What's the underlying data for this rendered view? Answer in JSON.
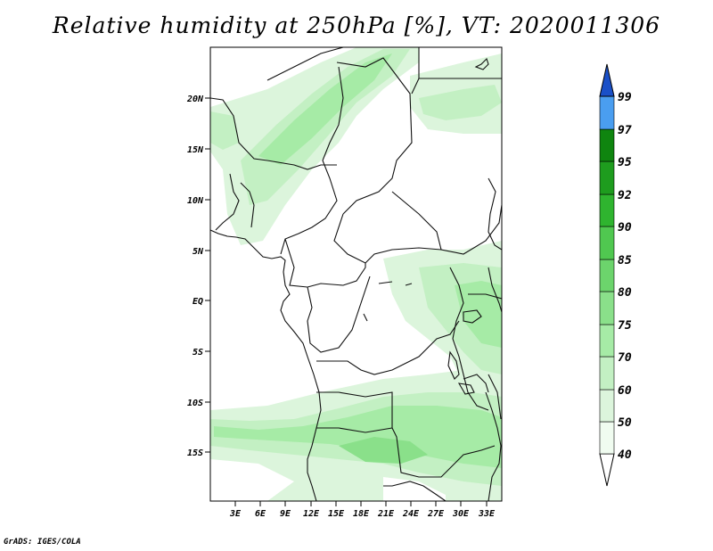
{
  "title": "Relative humidity at 250hPa [%], VT: 2020011306",
  "credit": "GrADS: IGES/COLA",
  "map": {
    "lon_labels": [
      "3E",
      "6E",
      "9E",
      "12E",
      "15E",
      "18E",
      "21E",
      "24E",
      "27E",
      "30E",
      "33E"
    ],
    "lat_labels": [
      "20N",
      "15N",
      "10N",
      "5N",
      "EQ",
      "5S",
      "10S",
      "15S"
    ]
  },
  "colorbar": {
    "levels": [
      "40",
      "50",
      "60",
      "70",
      "75",
      "80",
      "85",
      "90",
      "92",
      "95",
      "97",
      "99"
    ],
    "colors": [
      "#f0fcf0",
      "#dcf5dc",
      "#c3f0c3",
      "#a6eba6",
      "#8ae08a",
      "#6cd46c",
      "#50c850",
      "#2fb42f",
      "#1e9c1e",
      "#0f850f",
      "#4a9ef0",
      "#2a72e0",
      "#1a50c8"
    ]
  }
}
